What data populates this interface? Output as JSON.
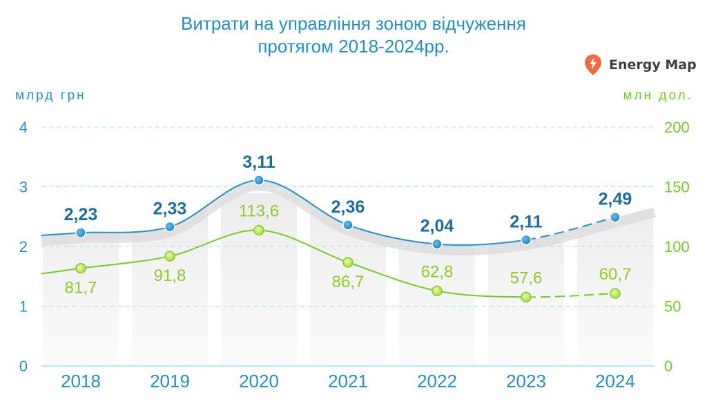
{
  "title_lines": [
    "Витрати на управління зоною відчуження",
    "протягом 2018-2024рр."
  ],
  "brand": {
    "name": "Energy Map",
    "icon": "map-pin-lightning-icon",
    "color": "#ef6b3b"
  },
  "axes": {
    "left_unit": "млрд грн",
    "right_unit": "млн дол.",
    "left_ticks": [
      "0",
      "1",
      "2",
      "3",
      "4"
    ],
    "right_ticks": [
      "0",
      "50",
      "100",
      "150",
      "200"
    ]
  },
  "colors": {
    "uah": "#1f93c9",
    "usd": "#6fcf1f",
    "grid": "#9fe4ef"
  },
  "chart_data": {
    "type": "line",
    "categories": [
      "2018",
      "2019",
      "2020",
      "2021",
      "2022",
      "2023",
      "2024"
    ],
    "series": [
      {
        "axis": "left",
        "unit": "млрд грн",
        "labels": [
          "2,23",
          "2,33",
          "3,11",
          "2,36",
          "2,04",
          "2,11",
          "2,49"
        ],
        "values": [
          2.23,
          2.33,
          3.11,
          2.36,
          2.04,
          2.11,
          2.49
        ],
        "dashed_from": "2023"
      },
      {
        "axis": "right",
        "unit": "млн дол.",
        "labels": [
          "81,7",
          "91,8",
          "113,6",
          "86,7",
          "62,8",
          "57,6",
          "60,7"
        ],
        "values": [
          81.7,
          91.8,
          113.6,
          86.7,
          62.8,
          57.6,
          60.7
        ],
        "dashed_from": "2023"
      }
    ],
    "ylim_left": [
      0,
      4
    ],
    "ylim_right": [
      0,
      200
    ],
    "grid": true
  }
}
